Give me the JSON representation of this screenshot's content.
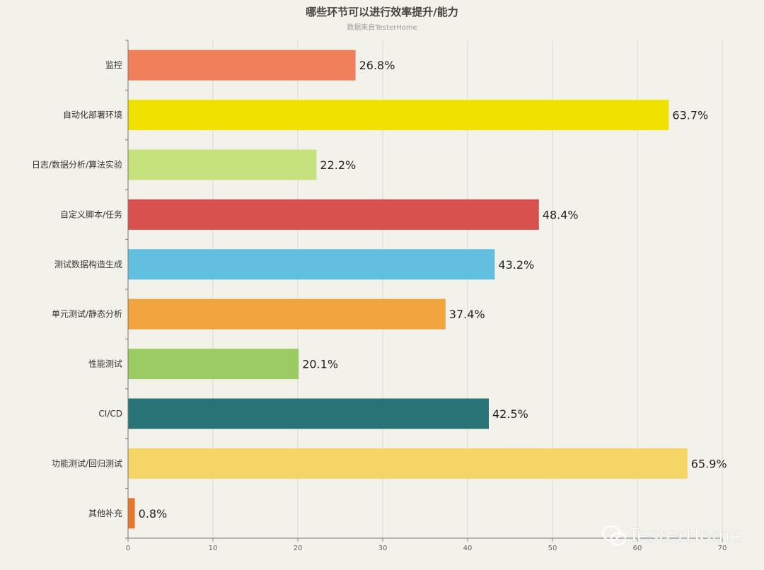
{
  "watermark": "TesterHome",
  "chart_data": {
    "type": "bar",
    "orientation": "horizontal",
    "title": "哪些环节可以进行效率提升/能力",
    "subtitle": "数据来自TesterHome",
    "categories": [
      "监控",
      "自动化部署环境",
      "日志/数据分析/算法实验",
      "自定义脚本/任务",
      "测试数据构造生成",
      "单元测试/静态分析",
      "性能测试",
      "CI/CD",
      "功能测试/回归测试",
      "其他补充"
    ],
    "values": [
      26.8,
      63.7,
      22.2,
      48.4,
      43.2,
      37.4,
      20.1,
      42.5,
      65.9,
      0.8
    ],
    "value_labels": [
      "26.8%",
      "63.7%",
      "22.2%",
      "48.4%",
      "43.2%",
      "37.4%",
      "20.1%",
      "42.5%",
      "65.9%",
      "0.8%"
    ],
    "colors": [
      "#f07f5c",
      "#f1e100",
      "#c5e27d",
      "#d9514e",
      "#63bfe0",
      "#f2a53e",
      "#9ccb63",
      "#277375",
      "#f6d567",
      "#e6772a"
    ],
    "xlim": [
      0,
      70
    ],
    "xticks": [
      0,
      10,
      20,
      30,
      40,
      50,
      60,
      70
    ],
    "grid": true,
    "legend": "none"
  }
}
